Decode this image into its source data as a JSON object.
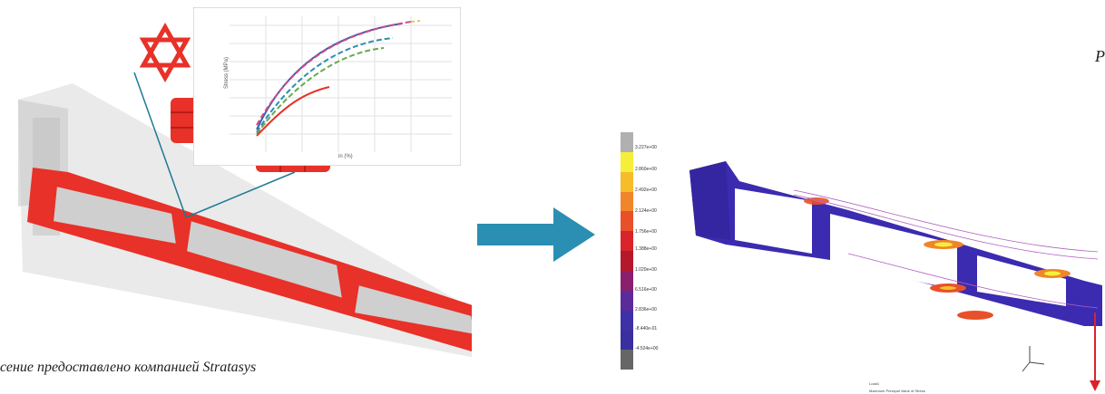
{
  "caption": "сение предоставлено компанией Stratasys",
  "corner_letter": "P",
  "chart": {
    "ylabel": "Stress (MPa)",
    "xlabel": "in (%)"
  },
  "legend": {
    "labels": [
      "3.227e+00",
      "2.860e+00",
      "2.492e+00",
      "2.124e+00",
      "1.756e+00",
      "1.388e+00",
      "1.020e+00",
      "6.516e+00",
      "2.836e+00",
      "-8.440e-01",
      "-4.524e+00"
    ],
    "colors": [
      "#b0b0b0",
      "#f6ef3a",
      "#f5bd2a",
      "#f1852a",
      "#e8502a",
      "#d9242a",
      "#b4182a",
      "#8a1f6e",
      "#5b2b9a",
      "#3f30a8",
      "#3a2f9e",
      "#666666"
    ]
  },
  "footer": {
    "line1": "Load1",
    "line2": "Maximum Principal Value of Stress"
  },
  "colors": {
    "red": "#e83128",
    "arrow": "#2a8fb2",
    "blue_part": "#3b2bb0"
  }
}
